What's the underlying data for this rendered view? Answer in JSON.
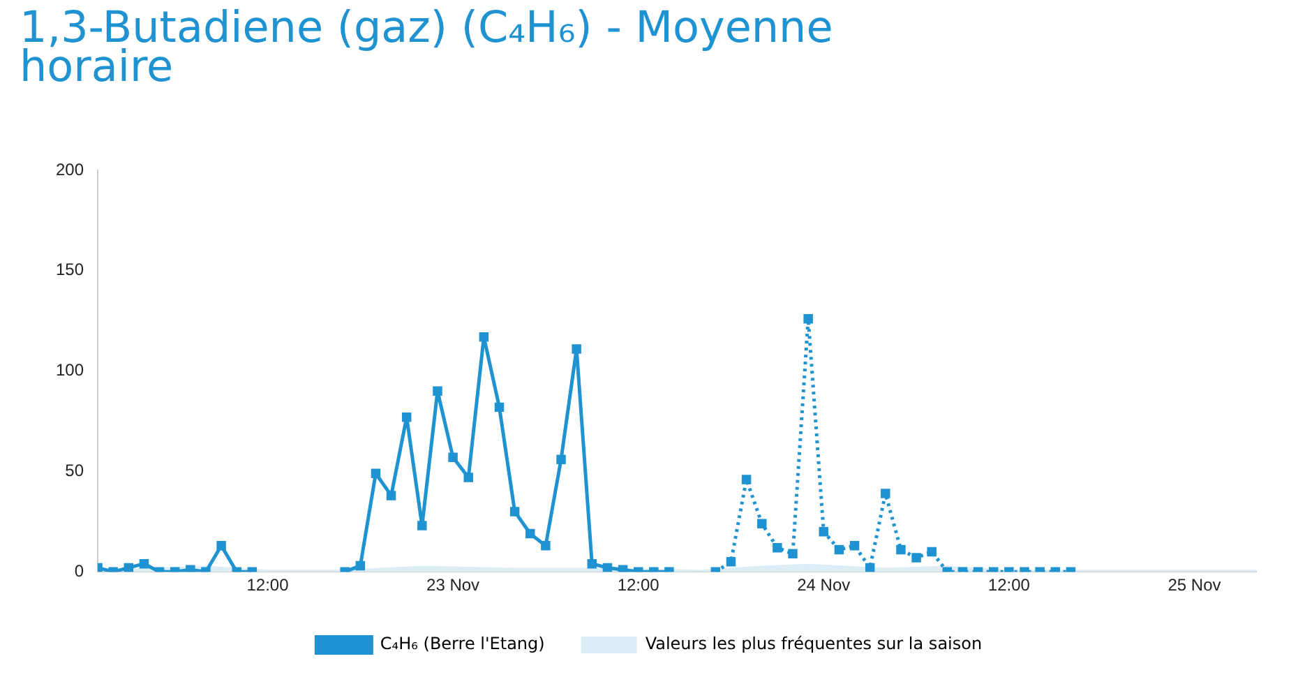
{
  "chart_data": {
    "type": "line",
    "title": "1,3-Butadiene (gaz) (C₄H₆) - Moyenne horaire",
    "xlim": [
      "--11-22T01:00",
      "--11-25T04:00"
    ],
    "xticks": [
      {
        "value": "--11-22T12:00",
        "label": "12:00"
      },
      {
        "value": "--11-23T00:00",
        "label": "23 Nov"
      },
      {
        "value": "--11-23T12:00",
        "label": "12:00"
      },
      {
        "value": "--11-24T00:00",
        "label": "24 Nov"
      },
      {
        "value": "--11-24T12:00",
        "label": "12:00"
      },
      {
        "value": "--11-25T00:00",
        "label": "25 Nov"
      }
    ],
    "ylim": [
      0,
      200
    ],
    "yticks": [
      0,
      50,
      100,
      150,
      200
    ],
    "grid": false,
    "legend": "bottom",
    "marker": "square",
    "series": [
      {
        "name": "C₄H₆ (Berre l'Etang)",
        "color": "#1f93d1",
        "line_style": "solid",
        "x": [
          "--11-22T01:00",
          "--11-22T02:00",
          "--11-22T03:00",
          "--11-22T04:00",
          "--11-22T05:00",
          "--11-22T06:00",
          "--11-22T07:00",
          "--11-22T08:00",
          "--11-22T09:00",
          "--11-22T10:00",
          "--11-22T11:00",
          "--11-22T12:00",
          "--11-22T13:00",
          "--11-22T14:00",
          "--11-22T15:00",
          "--11-22T16:00",
          "--11-22T17:00",
          "--11-22T18:00",
          "--11-22T19:00",
          "--11-22T20:00",
          "--11-22T21:00",
          "--11-22T22:00",
          "--11-22T23:00",
          "--11-23T00:00",
          "--11-23T01:00",
          "--11-23T02:00",
          "--11-23T03:00",
          "--11-23T04:00",
          "--11-23T05:00",
          "--11-23T06:00",
          "--11-23T07:00",
          "--11-23T08:00",
          "--11-23T09:00",
          "--11-23T10:00",
          "--11-23T11:00",
          "--11-23T12:00",
          "--11-23T13:00",
          "--11-23T14:00"
        ],
        "values": [
          2,
          0,
          2,
          4,
          0,
          0,
          1,
          0,
          13,
          0,
          0,
          null,
          null,
          null,
          null,
          null,
          0,
          3,
          49,
          38,
          77,
          23,
          90,
          57,
          47,
          117,
          82,
          30,
          19,
          13,
          56,
          111,
          4,
          2,
          1,
          0,
          0,
          0
        ]
      },
      {
        "color": "#1f93d1",
        "line_style": "dotted",
        "x": [
          "--11-23T17:00",
          "--11-23T18:00",
          "--11-23T19:00",
          "--11-23T20:00",
          "--11-23T21:00",
          "--11-23T22:00",
          "--11-23T23:00",
          "--11-24T00:00",
          "--11-24T01:00",
          "--11-24T02:00",
          "--11-24T03:00",
          "--11-24T04:00",
          "--11-24T05:00",
          "--11-24T06:00",
          "--11-24T07:00",
          "--11-24T08:00",
          "--11-24T09:00",
          "--11-24T10:00",
          "--11-24T11:00",
          "--11-24T12:00",
          "--11-24T13:00",
          "--11-24T14:00",
          "--11-24T15:00",
          "--11-24T16:00"
        ],
        "values": [
          0,
          5,
          46,
          24,
          12,
          9,
          126,
          20,
          11,
          13,
          2,
          39,
          11,
          7,
          10,
          0,
          0,
          0,
          0,
          0,
          0,
          0,
          0,
          0
        ]
      },
      {
        "name": "Valeurs les plus fréquentes sur la saison",
        "type": "area",
        "color": "#dcedf7",
        "marker": "none",
        "x": [
          "--11-22T01:00",
          "--11-22T08:00",
          "--11-22T12:00",
          "--11-22T17:00",
          "--11-22T22:00",
          "--11-23T04:00",
          "--11-23T10:00",
          "--11-23T16:00",
          "--11-23T20:00",
          "--11-23T23:00",
          "--11-24T04:00",
          "--11-24T08:00",
          "--11-24T12:00",
          "--11-24T16:00",
          "--11-24T22:00",
          "--11-25T04:00"
        ],
        "values": [
          1,
          3,
          1,
          1,
          3,
          2,
          2,
          1,
          3,
          4,
          2,
          3,
          1,
          1,
          1,
          1
        ]
      }
    ]
  }
}
